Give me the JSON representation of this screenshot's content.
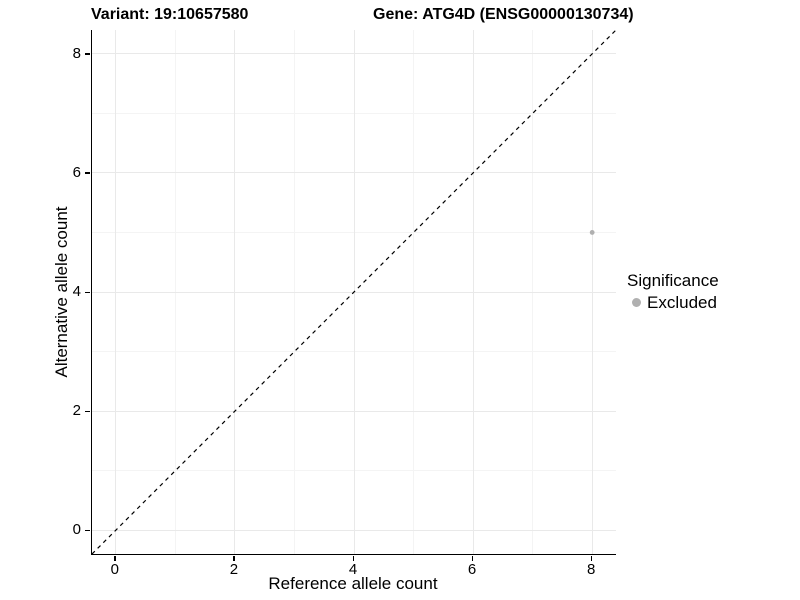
{
  "titles": {
    "variant": "Variant: 19:10657580",
    "gene": "Gene: ATG4D (ENSG00000130734)"
  },
  "axes": {
    "x_label": "Reference allele count",
    "y_label": "Alternative allele count"
  },
  "legend": {
    "title": "Significance",
    "items": [
      {
        "label": "Excluded",
        "color": "#b0b0b0"
      }
    ]
  },
  "colors": {
    "axis_line": "#000000",
    "grid_major": "#e9e9e9",
    "grid_minor": "#f4f4f4",
    "identity_line": "#000000",
    "point": "#b0b0b0",
    "text": "#000000"
  },
  "chart_data": {
    "type": "scatter",
    "title_left": "Variant: 19:10657580",
    "title_right": "Gene: ATG4D (ENSG00000130734)",
    "xlabel": "Reference allele count",
    "ylabel": "Alternative allele count",
    "xlim": [
      -0.4,
      8.4
    ],
    "ylim": [
      -0.4,
      8.4
    ],
    "x_major_ticks": [
      0,
      2,
      4,
      6,
      8
    ],
    "y_major_ticks": [
      0,
      2,
      4,
      6,
      8
    ],
    "x_minor_ticks": [
      1,
      3,
      5,
      7
    ],
    "y_minor_ticks": [
      1,
      3,
      5,
      7
    ],
    "grid": true,
    "legend_position": "right",
    "series": [
      {
        "name": "Excluded",
        "color": "#b0b0b0",
        "points": [
          {
            "x": 8,
            "y": 5
          }
        ]
      }
    ],
    "reference_line": {
      "kind": "identity y=x",
      "style": "dashed",
      "x1": -0.4,
      "y1": -0.4,
      "x2": 8.4,
      "y2": 8.4
    }
  }
}
